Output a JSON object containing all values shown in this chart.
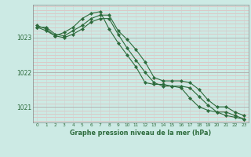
{
  "title": "Graphe pression niveau de la mer (hPa)",
  "bg_color": "#cceae4",
  "line_color": "#2d6b3c",
  "grid_color_h": "#b0b0b0",
  "grid_color_v": "#d0d0d0",
  "xlim": [
    -0.5,
    23.5
  ],
  "ylim": [
    1020.55,
    1023.95
  ],
  "yticks": [
    1021,
    1022,
    1023
  ],
  "xticks": [
    0,
    1,
    2,
    3,
    4,
    5,
    6,
    7,
    8,
    9,
    10,
    11,
    12,
    13,
    14,
    15,
    16,
    17,
    18,
    19,
    20,
    21,
    22,
    23
  ],
  "series": [
    {
      "x": [
        0,
        1,
        2,
        3,
        4,
        5,
        6,
        7,
        8,
        9,
        10,
        11,
        12,
        13,
        14,
        15,
        16,
        17,
        18,
        19,
        20,
        21,
        22,
        23
      ],
      "y": [
        1023.3,
        1023.3,
        1023.1,
        1023.05,
        1023.2,
        1023.35,
        1023.55,
        1023.65,
        1023.65,
        1023.2,
        1022.95,
        1022.65,
        1022.3,
        1021.85,
        1021.75,
        1021.75,
        1021.75,
        1021.7,
        1021.5,
        1021.2,
        1021.0,
        1021.0,
        1020.85,
        1020.75
      ]
    },
    {
      "x": [
        0,
        1,
        2,
        3,
        4,
        5,
        6,
        7,
        8,
        9,
        10,
        11,
        12,
        13,
        14,
        15,
        16,
        17,
        18,
        19,
        20,
        21,
        22,
        23
      ],
      "y": [
        1023.3,
        1023.2,
        1023.05,
        1023.0,
        1023.1,
        1023.25,
        1023.45,
        1023.55,
        1023.55,
        1023.1,
        1022.7,
        1022.35,
        1022.0,
        1021.7,
        1021.6,
        1021.6,
        1021.6,
        1021.55,
        1021.3,
        1021.05,
        1020.85,
        1020.85,
        1020.75,
        1020.65
      ]
    },
    {
      "x": [
        0,
        1,
        2,
        3,
        4,
        5,
        6,
        7,
        8,
        9,
        10,
        11,
        12,
        13,
        14,
        15,
        16,
        17,
        18,
        19,
        20,
        21,
        22,
        23
      ],
      "y": [
        1023.35,
        1023.25,
        1023.05,
        1023.15,
        1023.3,
        1023.55,
        1023.7,
        1023.75,
        1023.25,
        1022.85,
        1022.5,
        1022.15,
        1021.7,
        1021.65,
        1021.65,
        1021.6,
        1021.55,
        1021.25,
        1021.0,
        1020.9,
        1020.85,
        1020.75,
        1020.7,
        1020.65
      ]
    }
  ]
}
